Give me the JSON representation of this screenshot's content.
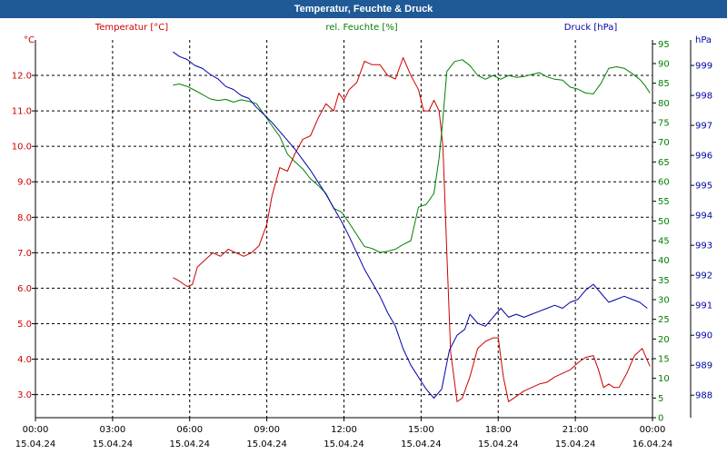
{
  "window": {
    "title": "Temperatur, Feuchte & Druck"
  },
  "colors": {
    "temperature": "#cc0000",
    "humidity": "#008000",
    "pressure": "#0000aa",
    "axis": "#000000",
    "grid": "#000000",
    "title_bg": "#1f5a96"
  },
  "chart_data": {
    "type": "line",
    "title": "Temperatur, Feuchte & Druck",
    "x_ticks": [
      {
        "time": "00:00",
        "date": "15.04.24"
      },
      {
        "time": "03:00",
        "date": "15.04.24"
      },
      {
        "time": "06:00",
        "date": "15.04.24"
      },
      {
        "time": "09:00",
        "date": "15.04.24"
      },
      {
        "time": "12:00",
        "date": "15.04.24"
      },
      {
        "time": "15:00",
        "date": "15.04.24"
      },
      {
        "time": "18:00",
        "date": "15.04.24"
      },
      {
        "time": "21:00",
        "date": "15.04.24"
      },
      {
        "time": "00:00",
        "date": "16.04.24"
      }
    ],
    "xlim_hours": [
      0,
      24
    ],
    "axes": {
      "temperature": {
        "label": "Temperatur [°C]",
        "unit": "°C",
        "ylim": [
          2.35,
          13.0
        ],
        "ticks": [
          "3.0",
          "4.0",
          "5.0",
          "6.0",
          "7.0",
          "8.0",
          "9.0",
          "10.0",
          "11.0",
          "12.0"
        ]
      },
      "humidity": {
        "label": "rel. Feuchte [%]",
        "unit": "%",
        "ylim": [
          0,
          96
        ],
        "ticks": [
          "0",
          "5",
          "10",
          "15",
          "20",
          "25",
          "30",
          "35",
          "40",
          "45",
          "50",
          "55",
          "60",
          "65",
          "70",
          "75",
          "80",
          "85",
          "90",
          "95"
        ]
      },
      "pressure": {
        "label": "Druck [hPa]",
        "unit": "hPa",
        "ylim": [
          987.25,
          999.85
        ],
        "ticks": [
          "988",
          "989",
          "990",
          "991",
          "992",
          "993",
          "994",
          "995",
          "996",
          "997",
          "998",
          "999"
        ]
      }
    },
    "series": [
      {
        "name": "Temperatur [°C]",
        "axis": "temperature",
        "points": [
          [
            5.35,
            6.3
          ],
          [
            5.6,
            6.2
          ],
          [
            5.9,
            6.05
          ],
          [
            6.1,
            6.1
          ],
          [
            6.3,
            6.6
          ],
          [
            6.6,
            6.8
          ],
          [
            6.9,
            7.0
          ],
          [
            7.2,
            6.9
          ],
          [
            7.5,
            7.1
          ],
          [
            7.8,
            7.0
          ],
          [
            8.1,
            6.9
          ],
          [
            8.4,
            7.0
          ],
          [
            8.7,
            7.2
          ],
          [
            9.0,
            7.8
          ],
          [
            9.2,
            8.6
          ],
          [
            9.5,
            9.4
          ],
          [
            9.8,
            9.3
          ],
          [
            10.1,
            9.8
          ],
          [
            10.4,
            10.2
          ],
          [
            10.7,
            10.3
          ],
          [
            11.0,
            10.8
          ],
          [
            11.3,
            11.2
          ],
          [
            11.6,
            11.0
          ],
          [
            11.8,
            11.5
          ],
          [
            12.0,
            11.3
          ],
          [
            12.2,
            11.6
          ],
          [
            12.5,
            11.8
          ],
          [
            12.8,
            12.4
          ],
          [
            13.1,
            12.3
          ],
          [
            13.4,
            12.3
          ],
          [
            13.7,
            12.0
          ],
          [
            14.0,
            11.9
          ],
          [
            14.3,
            12.5
          ],
          [
            14.6,
            12.0
          ],
          [
            14.9,
            11.6
          ],
          [
            15.1,
            11.0
          ],
          [
            15.3,
            11.0
          ],
          [
            15.5,
            11.3
          ],
          [
            15.7,
            11.0
          ],
          [
            15.85,
            10.0
          ],
          [
            16.0,
            7.0
          ],
          [
            16.15,
            4.2
          ],
          [
            16.4,
            2.8
          ],
          [
            16.6,
            2.9
          ],
          [
            16.9,
            3.5
          ],
          [
            17.2,
            4.3
          ],
          [
            17.5,
            4.5
          ],
          [
            17.8,
            4.6
          ],
          [
            18.0,
            4.6
          ],
          [
            18.2,
            3.5
          ],
          [
            18.4,
            2.8
          ],
          [
            18.7,
            2.95
          ],
          [
            19.0,
            3.1
          ],
          [
            19.3,
            3.2
          ],
          [
            19.6,
            3.3
          ],
          [
            19.9,
            3.35
          ],
          [
            20.2,
            3.5
          ],
          [
            20.5,
            3.6
          ],
          [
            20.8,
            3.7
          ],
          [
            21.1,
            3.9
          ],
          [
            21.4,
            4.05
          ],
          [
            21.7,
            4.1
          ],
          [
            21.9,
            3.7
          ],
          [
            22.1,
            3.2
          ],
          [
            22.3,
            3.3
          ],
          [
            22.5,
            3.2
          ],
          [
            22.7,
            3.2
          ],
          [
            23.0,
            3.6
          ],
          [
            23.3,
            4.1
          ],
          [
            23.6,
            4.3
          ],
          [
            23.9,
            3.8
          ]
        ]
      },
      {
        "name": "rel. Feuchte [%]",
        "axis": "humidity",
        "points": [
          [
            5.35,
            84.5
          ],
          [
            5.6,
            84.8
          ],
          [
            5.9,
            84.2
          ],
          [
            6.2,
            83.2
          ],
          [
            6.5,
            82.1
          ],
          [
            6.8,
            81.0
          ],
          [
            7.1,
            80.6
          ],
          [
            7.4,
            80.9
          ],
          [
            7.7,
            80.2
          ],
          [
            8.0,
            80.8
          ],
          [
            8.3,
            80.4
          ],
          [
            8.6,
            79.8
          ],
          [
            8.9,
            77.0
          ],
          [
            9.2,
            74.2
          ],
          [
            9.5,
            71.5
          ],
          [
            9.8,
            67.0
          ],
          [
            10.1,
            65.0
          ],
          [
            10.4,
            63.2
          ],
          [
            10.7,
            60.7
          ],
          [
            11.0,
            59.0
          ],
          [
            11.3,
            57.0
          ],
          [
            11.6,
            53.2
          ],
          [
            11.9,
            52.3
          ],
          [
            12.2,
            49.5
          ],
          [
            12.5,
            46.5
          ],
          [
            12.8,
            43.5
          ],
          [
            13.1,
            43.0
          ],
          [
            13.4,
            42.0
          ],
          [
            13.7,
            42.3
          ],
          [
            14.0,
            42.8
          ],
          [
            14.3,
            44.0
          ],
          [
            14.6,
            45.0
          ],
          [
            14.9,
            53.5
          ],
          [
            15.2,
            54.2
          ],
          [
            15.5,
            57.0
          ],
          [
            15.7,
            66.0
          ],
          [
            15.85,
            76.0
          ],
          [
            16.0,
            88.0
          ],
          [
            16.3,
            90.5
          ],
          [
            16.6,
            91.0
          ],
          [
            16.9,
            89.5
          ],
          [
            17.2,
            87.0
          ],
          [
            17.5,
            86.0
          ],
          [
            17.8,
            87.0
          ],
          [
            18.1,
            86.0
          ],
          [
            18.4,
            87.0
          ],
          [
            18.7,
            86.5
          ],
          [
            19.0,
            86.7
          ],
          [
            19.3,
            87.2
          ],
          [
            19.6,
            87.7
          ],
          [
            19.9,
            86.6
          ],
          [
            20.2,
            86.0
          ],
          [
            20.5,
            85.8
          ],
          [
            20.8,
            84.0
          ],
          [
            21.1,
            83.5
          ],
          [
            21.4,
            82.5
          ],
          [
            21.7,
            82.3
          ],
          [
            22.0,
            85.0
          ],
          [
            22.3,
            88.8
          ],
          [
            22.6,
            89.2
          ],
          [
            22.9,
            88.8
          ],
          [
            23.2,
            87.5
          ],
          [
            23.5,
            86.0
          ],
          [
            23.7,
            84.5
          ],
          [
            23.9,
            82.5
          ]
        ]
      },
      {
        "name": "Druck [hPa]",
        "axis": "pressure",
        "points": [
          [
            5.35,
            999.45
          ],
          [
            5.6,
            999.3
          ],
          [
            5.9,
            999.2
          ],
          [
            6.2,
            999.0
          ],
          [
            6.5,
            998.9
          ],
          [
            6.8,
            998.7
          ],
          [
            7.1,
            998.55
          ],
          [
            7.4,
            998.3
          ],
          [
            7.7,
            998.2
          ],
          [
            8.0,
            998.0
          ],
          [
            8.3,
            997.9
          ],
          [
            8.6,
            997.6
          ],
          [
            8.9,
            997.35
          ],
          [
            9.2,
            997.1
          ],
          [
            9.5,
            996.8
          ],
          [
            9.8,
            996.5
          ],
          [
            10.1,
            996.2
          ],
          [
            10.4,
            995.85
          ],
          [
            10.7,
            995.5
          ],
          [
            11.0,
            995.1
          ],
          [
            11.3,
            994.7
          ],
          [
            11.6,
            994.25
          ],
          [
            11.9,
            993.8
          ],
          [
            12.2,
            993.3
          ],
          [
            12.5,
            992.75
          ],
          [
            12.8,
            992.2
          ],
          [
            13.1,
            991.75
          ],
          [
            13.4,
            991.3
          ],
          [
            13.7,
            990.75
          ],
          [
            14.0,
            990.3
          ],
          [
            14.3,
            989.55
          ],
          [
            14.6,
            989.0
          ],
          [
            14.9,
            988.6
          ],
          [
            15.2,
            988.2
          ],
          [
            15.5,
            987.9
          ],
          [
            15.8,
            988.2
          ],
          [
            16.1,
            989.5
          ],
          [
            16.4,
            990.0
          ],
          [
            16.7,
            990.2
          ],
          [
            16.9,
            990.7
          ],
          [
            17.2,
            990.4
          ],
          [
            17.5,
            990.3
          ],
          [
            17.8,
            990.6
          ],
          [
            18.1,
            990.9
          ],
          [
            18.4,
            990.6
          ],
          [
            18.7,
            990.7
          ],
          [
            19.0,
            990.6
          ],
          [
            19.3,
            990.7
          ],
          [
            19.6,
            990.8
          ],
          [
            19.9,
            990.9
          ],
          [
            20.2,
            991.0
          ],
          [
            20.5,
            990.9
          ],
          [
            20.8,
            991.1
          ],
          [
            21.1,
            991.2
          ],
          [
            21.4,
            991.5
          ],
          [
            21.7,
            991.7
          ],
          [
            22.0,
            991.4
          ],
          [
            22.3,
            991.1
          ],
          [
            22.6,
            991.2
          ],
          [
            22.9,
            991.3
          ],
          [
            23.2,
            991.2
          ],
          [
            23.5,
            991.1
          ],
          [
            23.8,
            990.9
          ]
        ]
      }
    ]
  }
}
